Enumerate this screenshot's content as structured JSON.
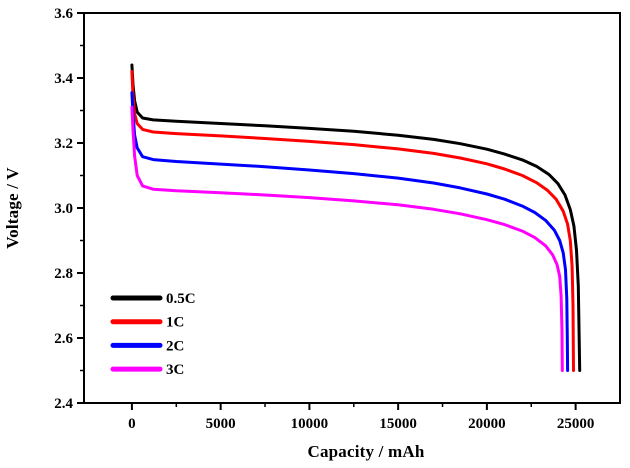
{
  "chart_data": {
    "type": "line",
    "title": "",
    "xlabel": "Capacity / mAh",
    "ylabel": "Voltage / V",
    "xlim": [
      -2700,
      27500
    ],
    "ylim": [
      2.4,
      3.6
    ],
    "grid": false,
    "legend_position": "inside-lower-left",
    "frame_color": "#000000",
    "background_color": "#ffffff",
    "x_major_ticks": [
      0,
      5000,
      10000,
      15000,
      20000,
      25000
    ],
    "x_tick_labels": [
      "0",
      "5000",
      "10000",
      "15000",
      "20000",
      "25000"
    ],
    "x_minor_ticks": [
      2500,
      7500,
      12500,
      17500,
      22500
    ],
    "y_major_ticks": [
      2.4,
      2.6,
      2.8,
      3.0,
      3.2,
      3.4,
      3.6
    ],
    "y_tick_labels": [
      "2.4",
      "2.6",
      "2.8",
      "3.0",
      "3.2",
      "3.4",
      "3.6"
    ],
    "y_minor_ticks": [
      2.5,
      2.7,
      2.9,
      3.1,
      3.3,
      3.5
    ],
    "series": [
      {
        "name": "0.5C",
        "color": "#000000",
        "points": [
          [
            0,
            3.44
          ],
          [
            60,
            3.38
          ],
          [
            150,
            3.33
          ],
          [
            300,
            3.295
          ],
          [
            600,
            3.277
          ],
          [
            1200,
            3.271
          ],
          [
            2500,
            3.267
          ],
          [
            5000,
            3.26
          ],
          [
            7500,
            3.253
          ],
          [
            10000,
            3.245
          ],
          [
            12500,
            3.236
          ],
          [
            15000,
            3.224
          ],
          [
            17000,
            3.211
          ],
          [
            18500,
            3.198
          ],
          [
            20000,
            3.181
          ],
          [
            21000,
            3.166
          ],
          [
            22000,
            3.148
          ],
          [
            22800,
            3.128
          ],
          [
            23500,
            3.103
          ],
          [
            24000,
            3.075
          ],
          [
            24400,
            3.04
          ],
          [
            24700,
            2.995
          ],
          [
            24900,
            2.945
          ],
          [
            25050,
            2.87
          ],
          [
            25150,
            2.76
          ],
          [
            25230,
            2.5
          ]
        ]
      },
      {
        "name": "1C",
        "color": "#ff0000",
        "points": [
          [
            0,
            3.42
          ],
          [
            60,
            3.345
          ],
          [
            150,
            3.29
          ],
          [
            300,
            3.26
          ],
          [
            600,
            3.242
          ],
          [
            1200,
            3.234
          ],
          [
            2500,
            3.229
          ],
          [
            5000,
            3.222
          ],
          [
            7500,
            3.214
          ],
          [
            10000,
            3.205
          ],
          [
            12500,
            3.195
          ],
          [
            15000,
            3.182
          ],
          [
            17000,
            3.168
          ],
          [
            18500,
            3.154
          ],
          [
            20000,
            3.136
          ],
          [
            21000,
            3.12
          ],
          [
            22000,
            3.1
          ],
          [
            22800,
            3.078
          ],
          [
            23400,
            3.055
          ],
          [
            23900,
            3.027
          ],
          [
            24300,
            2.99
          ],
          [
            24550,
            2.95
          ],
          [
            24700,
            2.9
          ],
          [
            24800,
            2.82
          ],
          [
            24850,
            2.7
          ],
          [
            24880,
            2.5
          ]
        ]
      },
      {
        "name": "2C",
        "color": "#0000ff",
        "points": [
          [
            0,
            3.355
          ],
          [
            60,
            3.29
          ],
          [
            150,
            3.225
          ],
          [
            300,
            3.185
          ],
          [
            600,
            3.158
          ],
          [
            1200,
            3.149
          ],
          [
            2500,
            3.143
          ],
          [
            5000,
            3.135
          ],
          [
            7500,
            3.127
          ],
          [
            10000,
            3.117
          ],
          [
            12500,
            3.106
          ],
          [
            15000,
            3.092
          ],
          [
            17000,
            3.077
          ],
          [
            18500,
            3.062
          ],
          [
            20000,
            3.043
          ],
          [
            21000,
            3.027
          ],
          [
            22000,
            3.006
          ],
          [
            22700,
            2.986
          ],
          [
            23300,
            2.962
          ],
          [
            23800,
            2.932
          ],
          [
            24100,
            2.9
          ],
          [
            24300,
            2.862
          ],
          [
            24430,
            2.81
          ],
          [
            24500,
            2.72
          ],
          [
            24530,
            2.6
          ],
          [
            24550,
            2.5
          ]
        ]
      },
      {
        "name": "3C",
        "color": "#ff00ff",
        "points": [
          [
            0,
            3.31
          ],
          [
            60,
            3.24
          ],
          [
            150,
            3.16
          ],
          [
            300,
            3.1
          ],
          [
            600,
            3.068
          ],
          [
            1200,
            3.058
          ],
          [
            2500,
            3.053
          ],
          [
            5000,
            3.047
          ],
          [
            7500,
            3.04
          ],
          [
            10000,
            3.032
          ],
          [
            12500,
            3.022
          ],
          [
            15000,
            3.01
          ],
          [
            17000,
            2.996
          ],
          [
            18500,
            2.982
          ],
          [
            20000,
            2.964
          ],
          [
            21000,
            2.949
          ],
          [
            22000,
            2.929
          ],
          [
            22700,
            2.909
          ],
          [
            23300,
            2.884
          ],
          [
            23700,
            2.856
          ],
          [
            23950,
            2.826
          ],
          [
            24100,
            2.79
          ],
          [
            24180,
            2.73
          ],
          [
            24230,
            2.62
          ],
          [
            24250,
            2.5
          ]
        ]
      }
    ]
  }
}
